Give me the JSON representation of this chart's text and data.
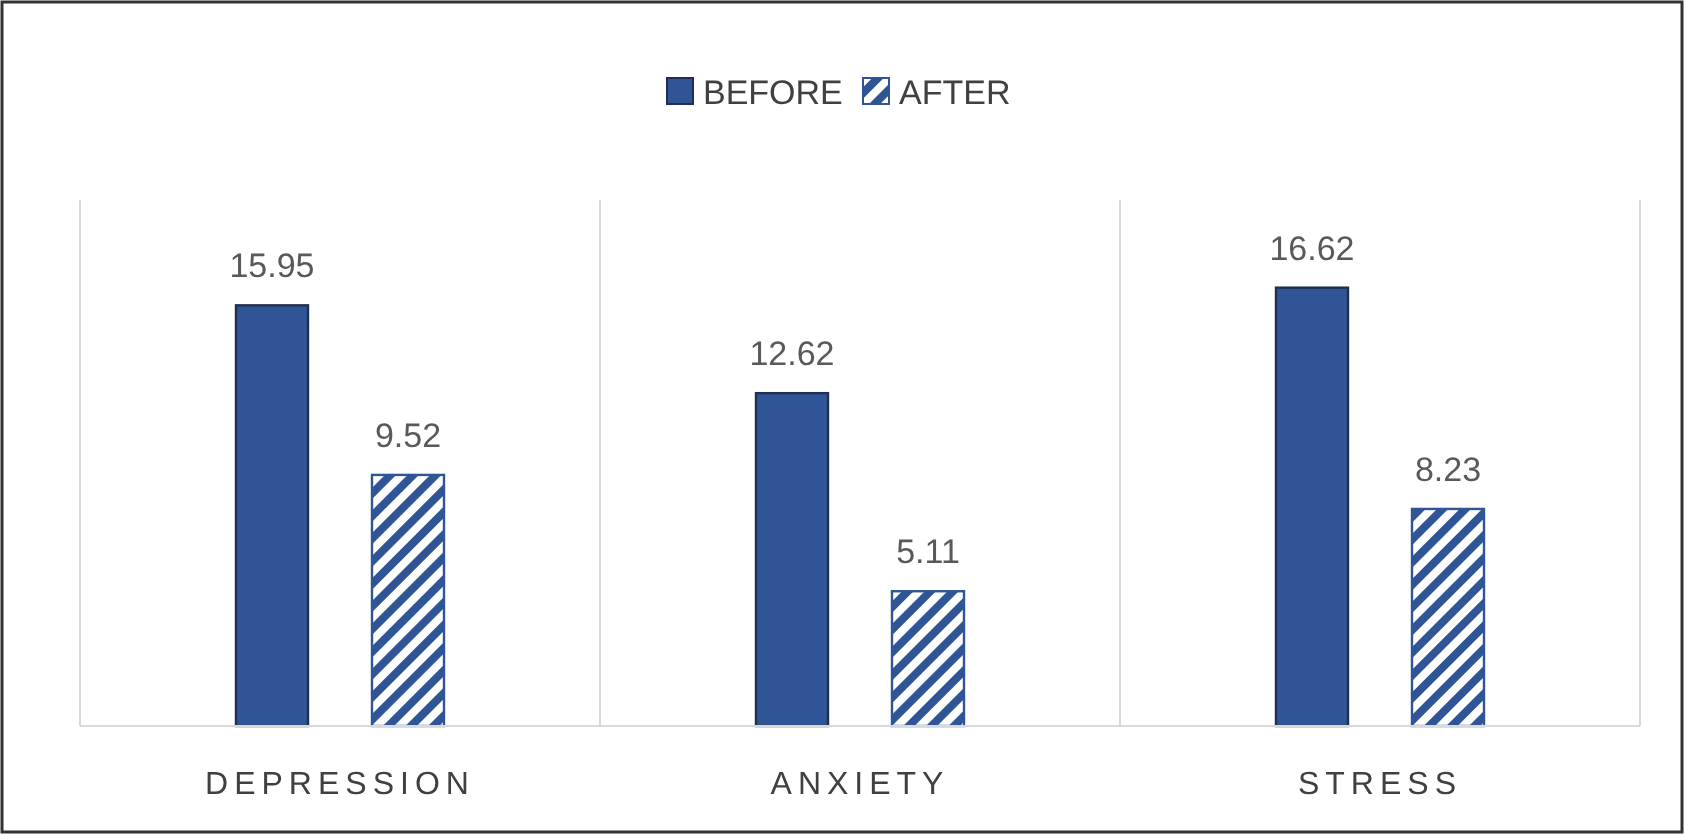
{
  "chart_data": {
    "type": "bar",
    "categories": [
      "DEPRESSION",
      "ANXIETY",
      "STRESS"
    ],
    "series": [
      {
        "name": "BEFORE",
        "color": "#2f5597",
        "values": [
          15.95,
          12.62,
          16.62
        ]
      },
      {
        "name": "AFTER",
        "color": "#2f5597",
        "values": [
          9.52,
          5.11,
          8.23
        ]
      }
    ],
    "data_labels": true,
    "grid": "x",
    "legend": "top"
  }
}
